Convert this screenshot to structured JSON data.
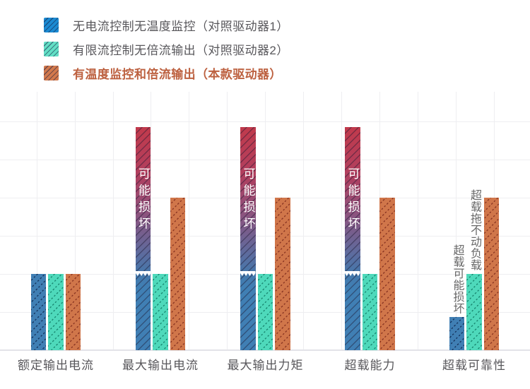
{
  "legend": {
    "items": [
      {
        "label": "无电流控制无温度监控（对照驱动器1）",
        "swatch": "#1b8ad2",
        "emphasis": false
      },
      {
        "label": "有限流控制无倍流输出（对照驱动器2）",
        "swatch": "#62dfc5",
        "emphasis": false
      },
      {
        "label": "有温度监控和倍流输出（本款驱动器）",
        "swatch": "#d2794d",
        "emphasis": true,
        "text_color": "#bd6140"
      }
    ]
  },
  "chart_data": {
    "type": "bar",
    "title": "",
    "xlabel": "",
    "ylabel": "",
    "categories": [
      "额定输出电流",
      "最大输出电流",
      "最大输出力矩",
      "超载能力",
      "超载可靠性"
    ],
    "series": [
      {
        "name": "无电流控制无温度监控（对照驱动器1）",
        "color": "#407fb4",
        "values": [
          100,
          292,
          292,
          292,
          43
        ],
        "overflow": [
          false,
          true,
          true,
          true,
          false
        ],
        "bar_labels": [
          "",
          "可能损坏",
          "可能损坏",
          "可能损坏",
          "超载可能损坏"
        ]
      },
      {
        "name": "有限流控制无倍流输出（对照驱动器2）",
        "color": "#4ed9bb",
        "values": [
          100,
          100,
          100,
          100,
          100
        ],
        "overflow": [
          false,
          false,
          false,
          false,
          false
        ],
        "bar_labels": [
          "",
          "",
          "",
          "",
          "超载拖不动负载"
        ]
      },
      {
        "name": "有温度监控和倍流输出（本款驱动器）",
        "color": "#d0764a",
        "values": [
          100,
          200,
          200,
          200,
          200
        ],
        "overflow": [
          false,
          false,
          false,
          false,
          false
        ],
        "bar_labels": [
          "",
          "",
          "",
          "",
          ""
        ]
      }
    ],
    "value_basis": "percent_of_rated_value",
    "ylim": [
      0,
      340
    ],
    "grid": true,
    "gridline_step": 50,
    "y_tick_labels_visible": false,
    "legend_position": "top-left",
    "overflow_marker": "white-zigzag-break-at-100",
    "overflow_gradient_top": "#c13a4c",
    "annotation_color": "#686868"
  }
}
